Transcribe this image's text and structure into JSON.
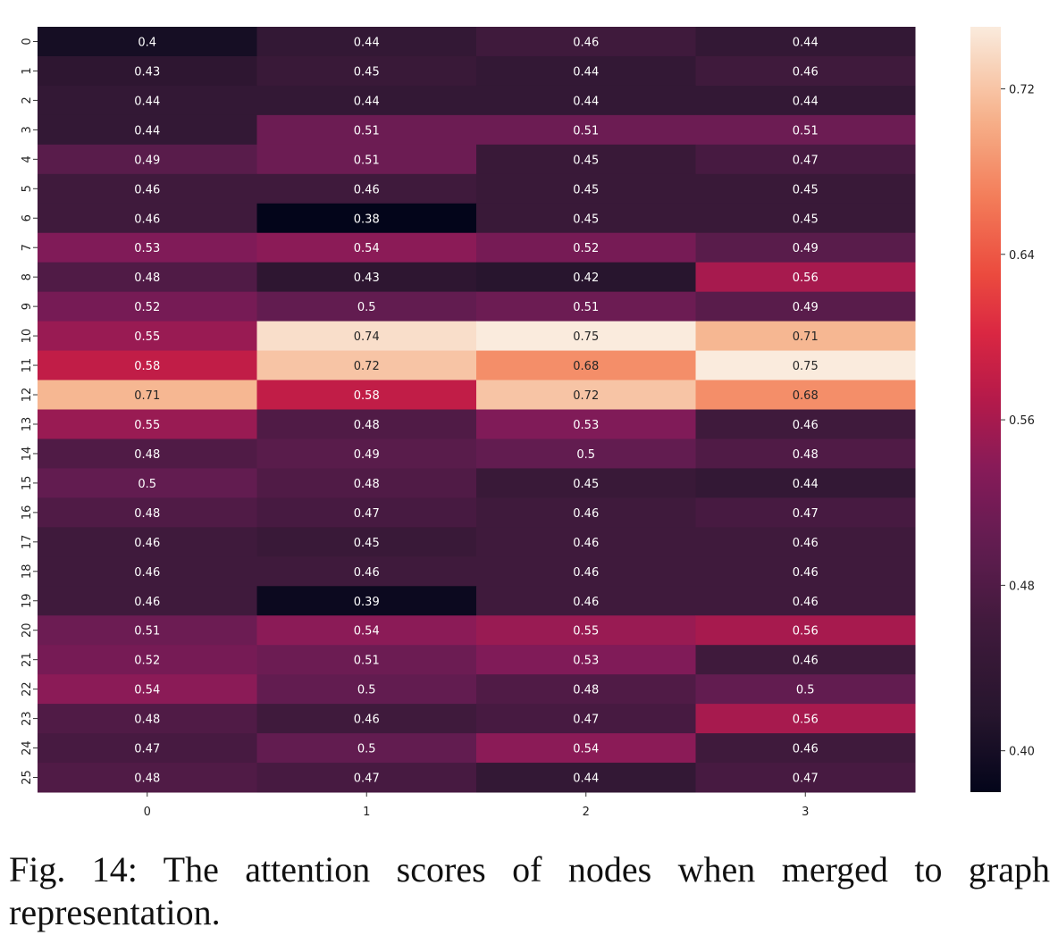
{
  "chart_data": {
    "type": "heatmap",
    "x_categories": [
      "0",
      "1",
      "2",
      "3"
    ],
    "y_categories": [
      "0",
      "1",
      "2",
      "3",
      "4",
      "5",
      "6",
      "7",
      "8",
      "9",
      "10",
      "11",
      "12",
      "13",
      "14",
      "15",
      "16",
      "17",
      "18",
      "19",
      "20",
      "21",
      "22",
      "23",
      "24",
      "25"
    ],
    "values": [
      [
        0.4,
        0.44,
        0.46,
        0.44
      ],
      [
        0.43,
        0.45,
        0.44,
        0.46
      ],
      [
        0.44,
        0.44,
        0.44,
        0.44
      ],
      [
        0.44,
        0.51,
        0.51,
        0.51
      ],
      [
        0.49,
        0.51,
        0.45,
        0.47
      ],
      [
        0.46,
        0.46,
        0.45,
        0.45
      ],
      [
        0.46,
        0.38,
        0.45,
        0.45
      ],
      [
        0.53,
        0.54,
        0.52,
        0.49
      ],
      [
        0.48,
        0.43,
        0.42,
        0.56
      ],
      [
        0.52,
        0.5,
        0.51,
        0.49
      ],
      [
        0.55,
        0.74,
        0.75,
        0.71
      ],
      [
        0.58,
        0.72,
        0.68,
        0.75
      ],
      [
        0.71,
        0.58,
        0.72,
        0.68
      ],
      [
        0.55,
        0.48,
        0.53,
        0.46
      ],
      [
        0.48,
        0.49,
        0.5,
        0.48
      ],
      [
        0.5,
        0.48,
        0.45,
        0.44
      ],
      [
        0.48,
        0.47,
        0.46,
        0.47
      ],
      [
        0.46,
        0.45,
        0.46,
        0.46
      ],
      [
        0.46,
        0.46,
        0.46,
        0.46
      ],
      [
        0.46,
        0.39,
        0.46,
        0.46
      ],
      [
        0.51,
        0.54,
        0.55,
        0.56
      ],
      [
        0.52,
        0.51,
        0.53,
        0.46
      ],
      [
        0.54,
        0.5,
        0.48,
        0.5
      ],
      [
        0.48,
        0.46,
        0.47,
        0.56
      ],
      [
        0.47,
        0.5,
        0.54,
        0.46
      ],
      [
        0.48,
        0.47,
        0.44,
        0.47
      ]
    ],
    "colormap": "rocket",
    "value_range": [
      0.38,
      0.75
    ],
    "colorbar_ticks": [
      0.4,
      0.48,
      0.56,
      0.64,
      0.72
    ],
    "colorbar_tick_labels": [
      "0.40",
      "0.48",
      "0.56",
      "0.64",
      "0.72"
    ],
    "annotations": true,
    "title": "",
    "xlabel": "",
    "ylabel": ""
  },
  "caption": "Fig. 14: The attention scores of nodes when merged to graph representation."
}
